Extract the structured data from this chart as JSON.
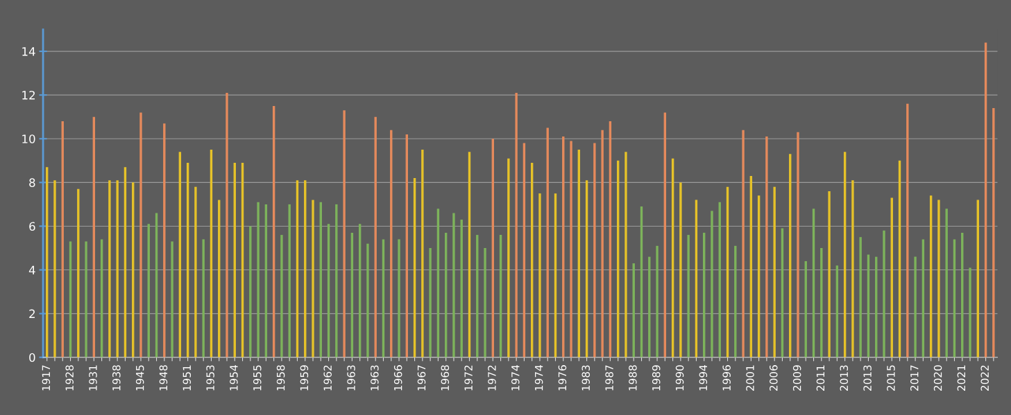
{
  "chart_data": {
    "type": "bar",
    "categories": [
      "1917",
      null,
      null,
      "1928",
      null,
      null,
      "1931",
      null,
      null,
      "1938",
      null,
      null,
      "1945",
      null,
      null,
      "1948",
      null,
      null,
      "1951",
      null,
      null,
      "1953",
      null,
      null,
      "1954",
      null,
      null,
      "1955",
      null,
      null,
      "1958",
      null,
      null,
      "1959",
      null,
      null,
      "1962",
      null,
      null,
      "1963",
      null,
      null,
      "1963",
      null,
      null,
      "1966",
      null,
      null,
      "1967",
      null,
      null,
      "1968",
      null,
      null,
      "1972",
      null,
      null,
      "1972",
      null,
      null,
      "1974",
      null,
      null,
      "1974",
      null,
      null,
      "1976",
      null,
      null,
      "1983",
      null,
      null,
      "1987",
      null,
      null,
      "1988",
      null,
      null,
      "1989",
      null,
      null,
      "1990",
      null,
      null,
      "1994",
      null,
      null,
      "1996",
      null,
      null,
      "2001",
      null,
      null,
      "2006",
      null,
      null,
      "2009",
      null,
      null,
      "2011",
      null,
      null,
      "2013",
      null,
      null,
      "2013",
      null,
      null,
      "2015",
      null,
      null,
      "2017",
      null,
      null,
      "2020",
      null,
      null,
      "2021",
      null,
      null,
      "2022",
      null
    ],
    "values": [
      8.7,
      8.1,
      10.8,
      5.3,
      7.7,
      5.3,
      11.0,
      5.4,
      8.1,
      8.1,
      8.7,
      8.0,
      11.2,
      6.1,
      6.6,
      10.7,
      5.3,
      9.4,
      8.9,
      7.8,
      5.4,
      9.5,
      7.2,
      12.1,
      8.9,
      8.9,
      6.0,
      7.1,
      7.0,
      11.5,
      5.6,
      7.0,
      8.1,
      8.1,
      7.2,
      7.1,
      6.1,
      7.0,
      11.3,
      5.7,
      6.1,
      5.2,
      11.0,
      5.4,
      10.4,
      5.4,
      10.2,
      8.2,
      9.5,
      5.0,
      6.8,
      5.7,
      6.6,
      6.3,
      9.4,
      5.6,
      5.0,
      10.0,
      5.6,
      9.1,
      12.1,
      9.8,
      8.9,
      7.5,
      10.5,
      7.5,
      10.1,
      9.9,
      9.5,
      8.1,
      9.8,
      10.4,
      10.8,
      9.0,
      9.4,
      4.3,
      6.9,
      4.6,
      5.1,
      11.2,
      9.1,
      8.0,
      5.6,
      7.2,
      5.7,
      6.7,
      7.1,
      7.8,
      5.1,
      10.4,
      8.3,
      7.4,
      10.1,
      7.8,
      5.9,
      9.3,
      10.3,
      4.4,
      6.8,
      5.0,
      7.6,
      4.2,
      9.4,
      8.1,
      5.5,
      4.7,
      4.6,
      5.8,
      7.3,
      9.0,
      11.6,
      4.6,
      5.4,
      7.4,
      7.2,
      6.8,
      5.4,
      5.7,
      4.1,
      7.2,
      14.4,
      11.4
    ],
    "colors": [
      "#e6c229",
      "#e6c229",
      "#e58a5c",
      "#7db35b",
      "#e6c229",
      "#7db35b",
      "#e58a5c",
      "#7db35b",
      "#e6c229",
      "#e6c229",
      "#e6c229",
      "#e6c229",
      "#e58a5c",
      "#7db35b",
      "#7db35b",
      "#e58a5c",
      "#7db35b",
      "#e6c229",
      "#e6c229",
      "#e6c229",
      "#7db35b",
      "#e6c229",
      "#e6c229",
      "#e58a5c",
      "#e6c229",
      "#e6c229",
      "#7db35b",
      "#7db35b",
      "#7db35b",
      "#e58a5c",
      "#7db35b",
      "#7db35b",
      "#e6c229",
      "#e6c229",
      "#e6c229",
      "#7db35b",
      "#7db35b",
      "#7db35b",
      "#e58a5c",
      "#7db35b",
      "#7db35b",
      "#7db35b",
      "#e58a5c",
      "#7db35b",
      "#e58a5c",
      "#7db35b",
      "#e58a5c",
      "#e6c229",
      "#e6c229",
      "#7db35b",
      "#7db35b",
      "#7db35b",
      "#7db35b",
      "#7db35b",
      "#e6c229",
      "#7db35b",
      "#7db35b",
      "#e58a5c",
      "#7db35b",
      "#e6c229",
      "#e58a5c",
      "#e58a5c",
      "#e6c229",
      "#e6c229",
      "#e58a5c",
      "#e6c229",
      "#e58a5c",
      "#e58a5c",
      "#e6c229",
      "#e6c229",
      "#e58a5c",
      "#e58a5c",
      "#e58a5c",
      "#e6c229",
      "#e6c229",
      "#7db35b",
      "#7db35b",
      "#7db35b",
      "#7db35b",
      "#e58a5c",
      "#e6c229",
      "#e6c229",
      "#7db35b",
      "#e6c229",
      "#7db35b",
      "#7db35b",
      "#7db35b",
      "#e6c229",
      "#7db35b",
      "#e58a5c",
      "#e6c229",
      "#e6c229",
      "#e58a5c",
      "#e6c229",
      "#7db35b",
      "#e6c229",
      "#e58a5c",
      "#7db35b",
      "#7db35b",
      "#7db35b",
      "#e6c229",
      "#7db35b",
      "#e6c229",
      "#e6c229",
      "#7db35b",
      "#7db35b",
      "#7db35b",
      "#7db35b",
      "#e6c229",
      "#e6c229",
      "#e58a5c",
      "#7db35b",
      "#7db35b",
      "#e6c229",
      "#e6c229",
      "#7db35b",
      "#7db35b",
      "#7db35b",
      "#7db35b",
      "#e6c229",
      "#e58a5c",
      "#e58a5c"
    ],
    "ylim": [
      0,
      15
    ],
    "yticks": [
      0,
      2,
      4,
      6,
      8,
      10,
      12,
      14
    ],
    "grid": "y"
  }
}
